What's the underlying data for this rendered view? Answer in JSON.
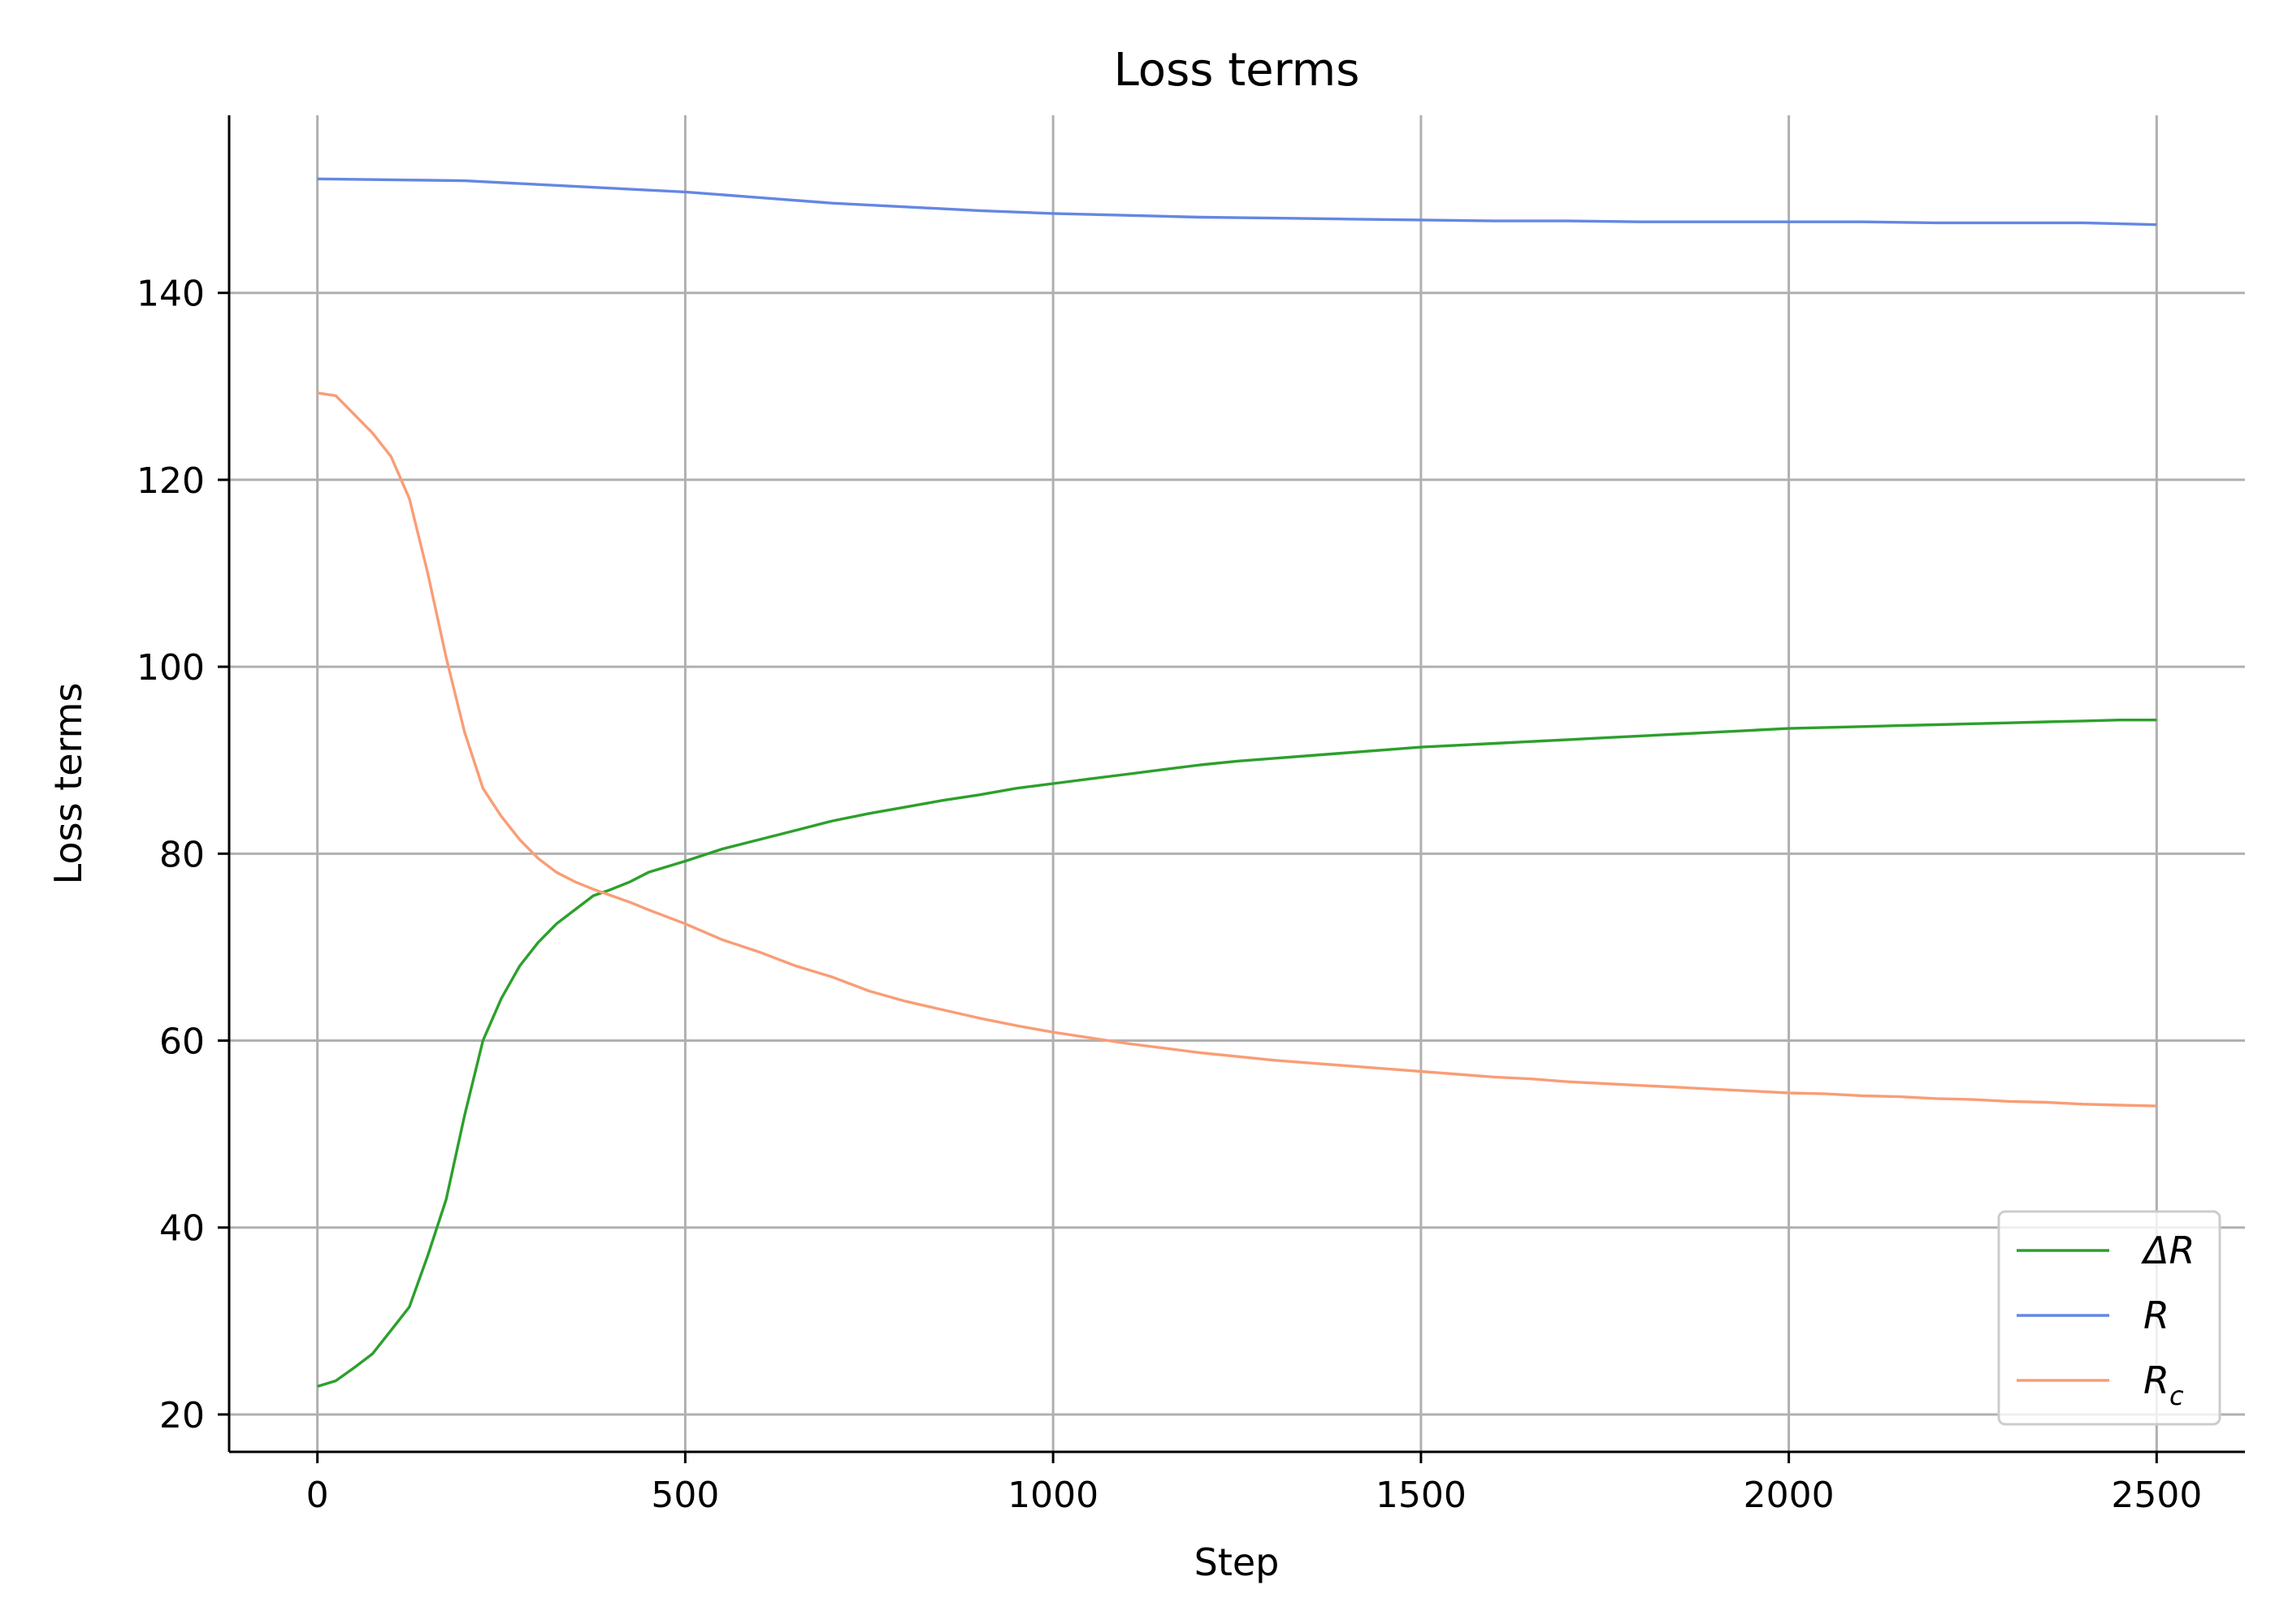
{
  "chart_data": {
    "type": "line",
    "title": "Loss terms",
    "xlabel": "Step",
    "ylabel": "Loss terms",
    "xlim": [
      -120,
      2620
    ],
    "ylim": [
      16,
      159
    ],
    "xticks": [
      0,
      500,
      1000,
      1500,
      2000,
      2500
    ],
    "yticks": [
      20,
      40,
      60,
      80,
      100,
      120,
      140
    ],
    "grid": true,
    "legend_position": "lower right",
    "series": [
      {
        "name": "ΔR",
        "legend_main": "ΔR",
        "color": "#2ca02c",
        "x": [
          0,
          25,
          50,
          75,
          100,
          125,
          150,
          175,
          200,
          225,
          250,
          275,
          300,
          325,
          350,
          375,
          400,
          425,
          450,
          500,
          550,
          600,
          650,
          700,
          750,
          800,
          850,
          900,
          950,
          1000,
          1050,
          1100,
          1150,
          1200,
          1250,
          1300,
          1350,
          1400,
          1450,
          1500,
          1550,
          1600,
          1650,
          1700,
          1750,
          1800,
          1850,
          1900,
          1950,
          2000,
          2050,
          2100,
          2150,
          2200,
          2250,
          2300,
          2350,
          2400,
          2450,
          2500
        ],
        "y": [
          23,
          23.6,
          25,
          26.5,
          29,
          31.5,
          37,
          43,
          52,
          60,
          64.5,
          68,
          70.5,
          72.5,
          74,
          75.5,
          76.2,
          77,
          78,
          79.2,
          80.5,
          81.5,
          82.5,
          83.5,
          84.3,
          85,
          85.7,
          86.3,
          87,
          87.5,
          88,
          88.5,
          89,
          89.5,
          89.9,
          90.2,
          90.5,
          90.8,
          91.1,
          91.4,
          91.6,
          91.8,
          92,
          92.2,
          92.4,
          92.6,
          92.8,
          93,
          93.2,
          93.4,
          93.5,
          93.6,
          93.7,
          93.8,
          93.9,
          94,
          94.1,
          94.2,
          94.3,
          94.3
        ]
      },
      {
        "name": "R",
        "legend_main": "R",
        "color": "#6487e3",
        "x": [
          0,
          100,
          200,
          300,
          400,
          500,
          600,
          700,
          800,
          900,
          1000,
          1100,
          1200,
          1300,
          1400,
          1500,
          1600,
          1700,
          1800,
          1900,
          2000,
          2100,
          2200,
          2300,
          2400,
          2500
        ],
        "y": [
          152.2,
          152.1,
          152,
          151.6,
          151.2,
          150.8,
          150.2,
          149.6,
          149.2,
          148.8,
          148.5,
          148.3,
          148.1,
          148,
          147.9,
          147.8,
          147.7,
          147.7,
          147.6,
          147.6,
          147.6,
          147.6,
          147.5,
          147.5,
          147.5,
          147.3
        ]
      },
      {
        "name": "R_c",
        "legend_main": "R",
        "legend_sub": "c",
        "color": "#f99d76",
        "x": [
          0,
          25,
          50,
          75,
          100,
          125,
          150,
          175,
          200,
          225,
          250,
          275,
          300,
          325,
          350,
          375,
          400,
          425,
          450,
          500,
          550,
          600,
          650,
          700,
          750,
          800,
          850,
          900,
          950,
          1000,
          1050,
          1100,
          1150,
          1200,
          1250,
          1300,
          1350,
          1400,
          1450,
          1500,
          1550,
          1600,
          1650,
          1700,
          1750,
          1800,
          1850,
          1900,
          1950,
          2000,
          2050,
          2100,
          2150,
          2200,
          2250,
          2300,
          2350,
          2400,
          2450,
          2500
        ],
        "y": [
          129.3,
          129,
          127,
          125,
          122.5,
          118,
          110,
          101,
          93,
          87,
          84,
          81.5,
          79.5,
          78,
          77,
          76.2,
          75.5,
          74.8,
          74,
          72.5,
          70.8,
          69.5,
          68,
          66.8,
          65.3,
          64.2,
          63.3,
          62.4,
          61.6,
          60.9,
          60.3,
          59.7,
          59.2,
          58.7,
          58.3,
          57.9,
          57.6,
          57.3,
          57,
          56.7,
          56.4,
          56.1,
          55.9,
          55.6,
          55.4,
          55.2,
          55,
          54.8,
          54.6,
          54.4,
          54.3,
          54.1,
          54,
          53.8,
          53.7,
          53.5,
          53.4,
          53.2,
          53.1,
          53
        ]
      }
    ]
  }
}
